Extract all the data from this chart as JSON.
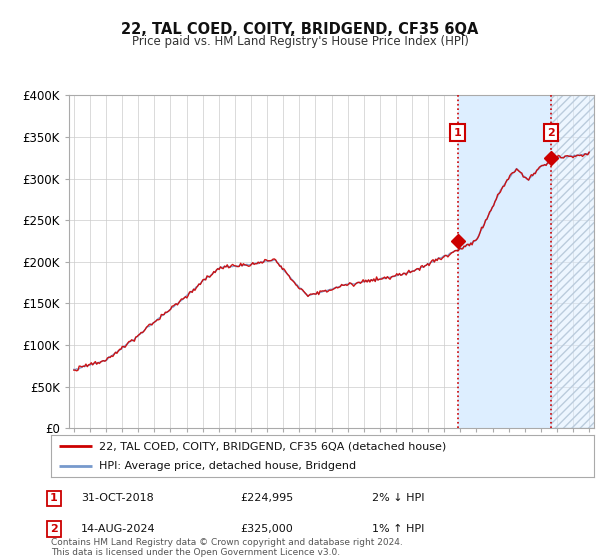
{
  "title": "22, TAL COED, COITY, BRIDGEND, CF35 6QA",
  "subtitle": "Price paid vs. HM Land Registry's House Price Index (HPI)",
  "legend_line1": "22, TAL COED, COITY, BRIDGEND, CF35 6QA (detached house)",
  "legend_line2": "HPI: Average price, detached house, Bridgend",
  "annotation1_date": "31-OCT-2018",
  "annotation1_price": "£224,995",
  "annotation1_hpi": "2% ↓ HPI",
  "annotation1_year": 2018.83,
  "annotation1_value": 224995,
  "annotation2_date": "14-AUG-2024",
  "annotation2_price": "£325,000",
  "annotation2_hpi": "1% ↑ HPI",
  "annotation2_year": 2024.62,
  "annotation2_value": 325000,
  "ylim": [
    0,
    400000
  ],
  "yticks": [
    0,
    50000,
    100000,
    150000,
    200000,
    250000,
    300000,
    350000,
    400000
  ],
  "ytick_labels": [
    "£0",
    "£50K",
    "£100K",
    "£150K",
    "£200K",
    "£250K",
    "£300K",
    "£350K",
    "£400K"
  ],
  "xmin": 1995,
  "xmax": 2027,
  "hpi_color": "#7799cc",
  "price_color": "#cc0000",
  "shade_color": "#ddeeff",
  "hatch_color": "#bbccdd",
  "plot_bg": "#ffffff",
  "grid_color": "#cccccc",
  "footer": "Contains HM Land Registry data © Crown copyright and database right 2024.\nThis data is licensed under the Open Government Licence v3.0."
}
